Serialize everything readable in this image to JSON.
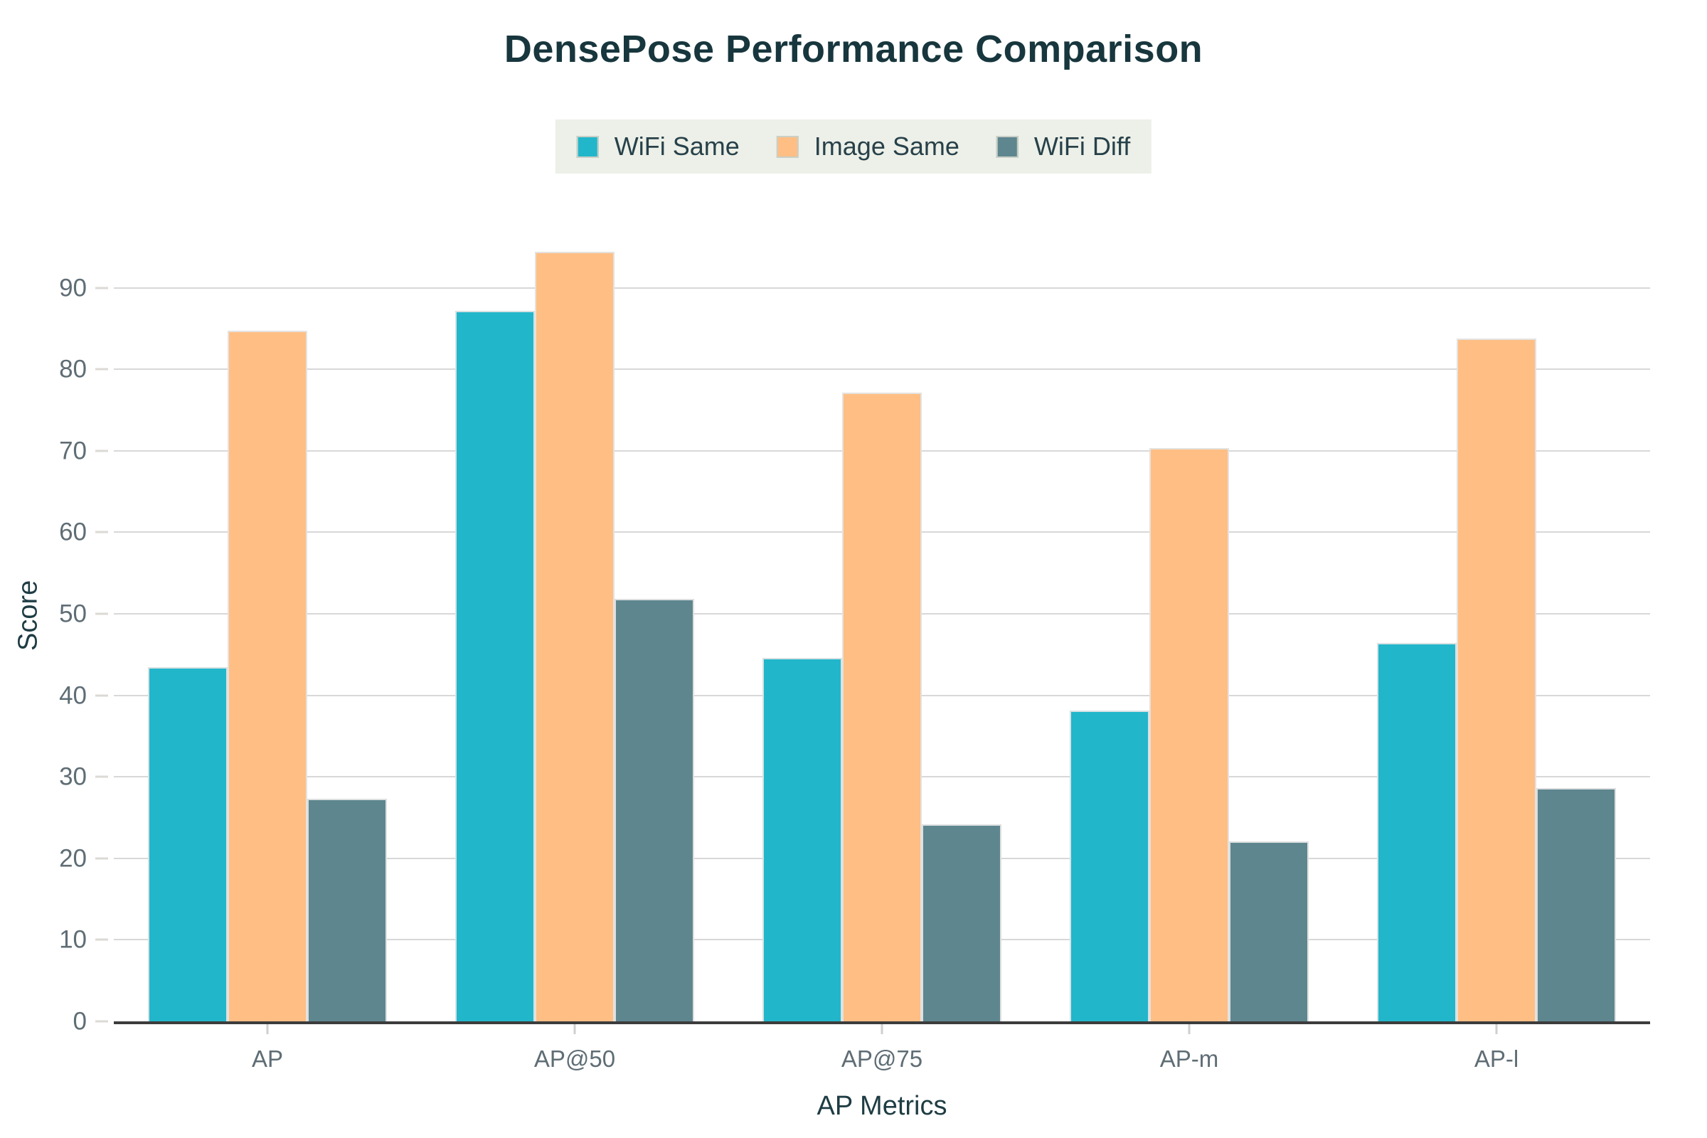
{
  "title": "DensePose Performance Comparison",
  "chart_data": {
    "type": "bar",
    "title": "DensePose Performance Comparison",
    "xlabel": "AP Metrics",
    "ylabel": "Score",
    "categories": [
      "AP",
      "AP@50",
      "AP@75",
      "AP-m",
      "AP-l"
    ],
    "series": [
      {
        "name": "WiFi Same",
        "color": "#22b6ca",
        "values": [
          43.5,
          87.2,
          44.6,
          38.1,
          46.4
        ]
      },
      {
        "name": "Image Same",
        "color": "#ffbe84",
        "values": [
          84.7,
          94.4,
          77.1,
          70.3,
          83.8
        ]
      },
      {
        "name": "WiFi Diff",
        "color": "#5e868f",
        "values": [
          27.3,
          51.8,
          24.2,
          22.1,
          28.6
        ]
      }
    ],
    "ylim": [
      0,
      100
    ],
    "yticks": [
      0,
      10,
      20,
      30,
      40,
      50,
      60,
      70,
      80,
      90
    ],
    "grid": true,
    "legend_position": "top-center"
  },
  "colors": {
    "title": "#17363d",
    "axis_label": "#1e3c43",
    "tick_label": "#5f6d75",
    "gridline": "#d8d8d8",
    "axis_line": "#3c3c3c",
    "legend_background": "#edf0e8",
    "page_background": "#ffffff"
  }
}
